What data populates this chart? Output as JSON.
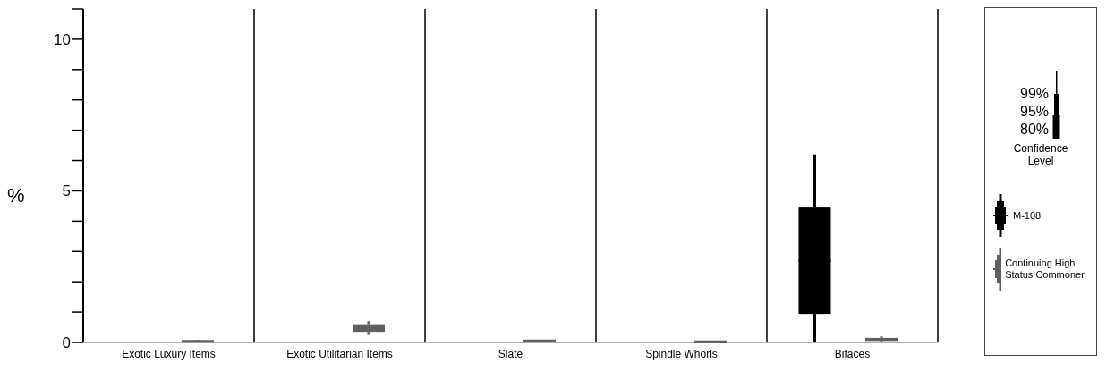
{
  "chart_data": {
    "type": "box",
    "ylabel": "%",
    "categories": [
      "Exotic Luxury Items",
      "Exotic Utilitarian Items",
      "Slate",
      "Spindle Whorls",
      "Bifaces"
    ],
    "ylim": [
      0,
      11
    ],
    "yticks": [
      0,
      {
        "value": 1,
        "label": null
      },
      {
        "value": 2,
        "label": null
      },
      {
        "value": 3,
        "label": null
      },
      {
        "value": 4,
        "label": null
      },
      5,
      {
        "value": 6,
        "label": null
      },
      {
        "value": 7,
        "label": null
      },
      {
        "value": 8,
        "label": null
      },
      {
        "value": 9,
        "label": null
      },
      10,
      {
        "value": 11,
        "label": null
      }
    ],
    "grid": "x",
    "legend": "right",
    "annotations": [
      "99%",
      "95%",
      "80%",
      "Confidence Level"
    ],
    "series": [
      {
        "name": "M-108",
        "color": "#000000",
        "boxes": [
          null,
          null,
          null,
          null,
          {
            "low": 0,
            "q1": 0.94,
            "median": 2.7,
            "q3": 4.45,
            "high": 6.2
          }
        ]
      },
      {
        "name": "Continuing High Status Commoner",
        "color": "#606060",
        "boxes": [
          {
            "low": 0.01,
            "q1": 0.02,
            "median": 0.04,
            "q3": 0.06,
            "high": 0.08
          },
          {
            "low": 0.25,
            "q1": 0.35,
            "median": 0.48,
            "q3": 0.6,
            "high": 0.7
          },
          {
            "low": 0.01,
            "q1": 0.03,
            "median": 0.05,
            "q3": 0.07,
            "high": 0.09
          },
          {
            "low": 0,
            "q1": 0.01,
            "median": 0.02,
            "q3": 0.03,
            "high": 0.04
          },
          {
            "low": 0.02,
            "q1": 0.05,
            "median": 0.1,
            "q3": 0.15,
            "high": 0.2
          }
        ]
      }
    ]
  }
}
